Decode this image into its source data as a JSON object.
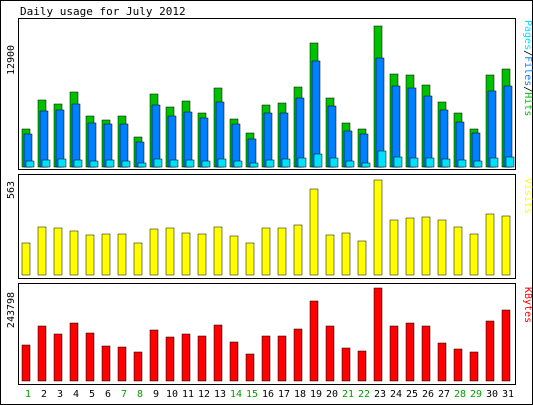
{
  "title": "Daily usage for July 2012",
  "colors": {
    "background": "#ffffff",
    "hits": "#00c000",
    "files": "#0080ff",
    "pages": "#00e0ff",
    "visits": "#ffff00",
    "kbytes": "#ff0000",
    "weekend_label": "#00a000",
    "weekday_label": "#000000",
    "border": "#000000"
  },
  "icons": {},
  "chart_data": [
    {
      "type": "bar",
      "title": "Daily usage for July 2012",
      "panel": "pages-files-hits",
      "legend": [
        {
          "name": "Pages",
          "color": "#00e0ff"
        },
        {
          "name": "Files",
          "color": "#0080ff"
        },
        {
          "name": "Hits",
          "color": "#00c000"
        }
      ],
      "y_max_label": "12900",
      "ylim": [
        0,
        12900
      ],
      "categories": [
        "1",
        "2",
        "3",
        "4",
        "5",
        "6",
        "7",
        "8",
        "9",
        "10",
        "11",
        "12",
        "13",
        "14",
        "15",
        "16",
        "17",
        "18",
        "19",
        "20",
        "21",
        "22",
        "23",
        "24",
        "25",
        "26",
        "27",
        "28",
        "29",
        "30",
        "31"
      ],
      "series": [
        {
          "name": "Hits",
          "values": [
            3400,
            6000,
            5600,
            6700,
            4500,
            4200,
            4500,
            2700,
            6500,
            5300,
            5900,
            4800,
            7000,
            4300,
            3000,
            5500,
            5700,
            7100,
            11000,
            6100,
            3900,
            3400,
            12500,
            8300,
            8200,
            7300,
            5800,
            4800,
            3400,
            8200,
            8700
          ]
        },
        {
          "name": "Files",
          "values": [
            2900,
            5000,
            5100,
            5600,
            3900,
            3800,
            3800,
            2200,
            5500,
            4500,
            4900,
            4400,
            5800,
            3800,
            2500,
            4800,
            4800,
            6100,
            9400,
            5400,
            3200,
            2900,
            9700,
            7200,
            7000,
            6300,
            5100,
            4000,
            3000,
            6800,
            7200
          ]
        },
        {
          "name": "Pages",
          "values": [
            500,
            600,
            700,
            600,
            500,
            600,
            500,
            400,
            700,
            600,
            600,
            500,
            700,
            500,
            400,
            600,
            700,
            800,
            1200,
            800,
            500,
            400,
            1400,
            900,
            800,
            800,
            700,
            600,
            500,
            800,
            900
          ]
        }
      ]
    },
    {
      "type": "bar",
      "panel": "visits",
      "legend": [
        {
          "name": "Visits",
          "color": "#ffff00"
        }
      ],
      "y_max_label": "563",
      "ylim": [
        0,
        563
      ],
      "categories": [
        "1",
        "2",
        "3",
        "4",
        "5",
        "6",
        "7",
        "8",
        "9",
        "10",
        "11",
        "12",
        "13",
        "14",
        "15",
        "16",
        "17",
        "18",
        "19",
        "20",
        "21",
        "22",
        "23",
        "24",
        "25",
        "26",
        "27",
        "28",
        "29",
        "30",
        "31"
      ],
      "series": [
        {
          "name": "Visits",
          "values": [
            187,
            285,
            279,
            261,
            237,
            244,
            244,
            190,
            273,
            276,
            247,
            243,
            283,
            233,
            188,
            276,
            278,
            299,
            508,
            239,
            251,
            200,
            563,
            325,
            335,
            346,
            326,
            283,
            245,
            359,
            351
          ]
        }
      ]
    },
    {
      "type": "bar",
      "panel": "kbytes",
      "legend": [
        {
          "name": "KBytes",
          "color": "#ff0000"
        }
      ],
      "y_max_label": "243798",
      "ylim": [
        0,
        243798
      ],
      "categories": [
        "1",
        "2",
        "3",
        "4",
        "5",
        "6",
        "7",
        "8",
        "9",
        "10",
        "11",
        "12",
        "13",
        "14",
        "15",
        "16",
        "17",
        "18",
        "19",
        "20",
        "21",
        "22",
        "23",
        "24",
        "25",
        "26",
        "27",
        "28",
        "29",
        "30",
        "31"
      ],
      "series": [
        {
          "name": "KBytes",
          "values": [
            94000,
            144000,
            122000,
            152000,
            127000,
            92000,
            88000,
            75000,
            133000,
            115000,
            122000,
            117000,
            147000,
            103000,
            71000,
            119000,
            119000,
            136000,
            210000,
            143000,
            87000,
            79000,
            243798,
            143000,
            153000,
            143000,
            100000,
            84000,
            77000,
            157000,
            187000
          ]
        }
      ]
    }
  ],
  "x_labels": [
    {
      "text": "1",
      "weekend": true
    },
    {
      "text": "2",
      "weekend": false
    },
    {
      "text": "3",
      "weekend": false
    },
    {
      "text": "4",
      "weekend": false
    },
    {
      "text": "5",
      "weekend": false
    },
    {
      "text": "6",
      "weekend": false
    },
    {
      "text": "7",
      "weekend": true
    },
    {
      "text": "8",
      "weekend": true
    },
    {
      "text": "9",
      "weekend": false
    },
    {
      "text": "10",
      "weekend": false
    },
    {
      "text": "11",
      "weekend": false
    },
    {
      "text": "12",
      "weekend": false
    },
    {
      "text": "13",
      "weekend": false
    },
    {
      "text": "14",
      "weekend": true
    },
    {
      "text": "15",
      "weekend": true
    },
    {
      "text": "16",
      "weekend": false
    },
    {
      "text": "17",
      "weekend": false
    },
    {
      "text": "18",
      "weekend": false
    },
    {
      "text": "19",
      "weekend": false
    },
    {
      "text": "20",
      "weekend": false
    },
    {
      "text": "21",
      "weekend": true
    },
    {
      "text": "22",
      "weekend": true
    },
    {
      "text": "23",
      "weekend": false
    },
    {
      "text": "24",
      "weekend": false
    },
    {
      "text": "25",
      "weekend": false
    },
    {
      "text": "26",
      "weekend": false
    },
    {
      "text": "27",
      "weekend": false
    },
    {
      "text": "28",
      "weekend": true
    },
    {
      "text": "29",
      "weekend": true
    },
    {
      "text": "30",
      "weekend": false
    },
    {
      "text": "31",
      "weekend": false
    }
  ]
}
